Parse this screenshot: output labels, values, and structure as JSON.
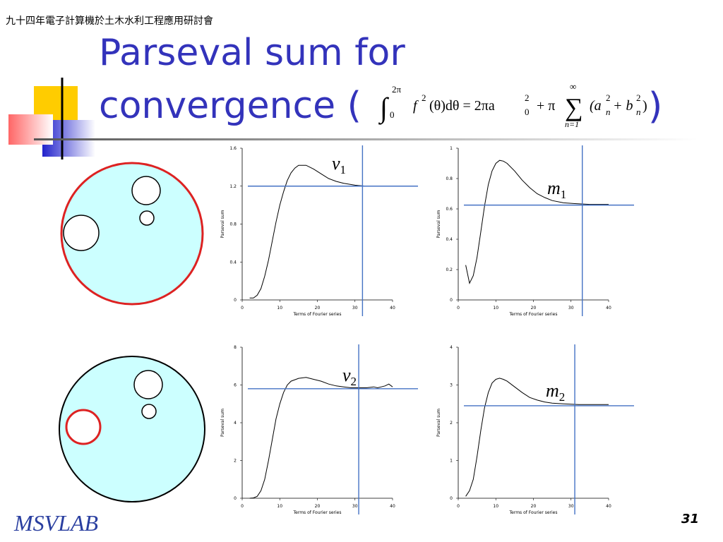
{
  "header": "九十四年電子計算機於土木水利工程應用研討會",
  "title_line1": "Parseval sum for",
  "title_line2": "convergence (",
  "title_close": ")",
  "formula": {
    "integral": "∫",
    "upper": "2π",
    "lower": "0",
    "f": "f",
    "f_sup": "2",
    "body": "(θ)dθ = 2πa",
    "a0_sup": "2",
    "a0_sub": "0",
    "plus": "+ π",
    "sum": "∑",
    "sum_upper": "∞",
    "sum_lower": "n=1",
    "term_a": "(a",
    "a_sup": "2",
    "a_sub": "n",
    "term_b": "+ b",
    "b_sup": "2",
    "b_sub": "n",
    "close": ")"
  },
  "footer_logo": "MSVLAB",
  "page_number": "31",
  "chart_data": [
    {
      "type": "line",
      "xlabel": "Terms of Fourier series",
      "ylabel": "Parseval sum",
      "annotation": {
        "symbol": "v",
        "subscript": "1"
      },
      "xlim": [
        0,
        40
      ],
      "xticks": [
        0,
        10,
        20,
        30,
        40
      ],
      "ylim": [
        0,
        1.6
      ],
      "yticks": [
        0,
        0.4,
        0.8,
        1.2,
        1.6
      ],
      "x": [
        2,
        3,
        4,
        5,
        6,
        7,
        8,
        9,
        10,
        11,
        12,
        13,
        14,
        15,
        17,
        19,
        21,
        23,
        25,
        27,
        30,
        33,
        36,
        40
      ],
      "values": [
        0.02,
        0.02,
        0.05,
        0.12,
        0.25,
        0.42,
        0.62,
        0.82,
        1.0,
        1.14,
        1.26,
        1.34,
        1.39,
        1.42,
        1.42,
        1.38,
        1.33,
        1.28,
        1.25,
        1.23,
        1.21,
        1.2,
        1.2,
        1.2
      ],
      "color": "#000000",
      "hline": 1.2,
      "vline": 32,
      "refcolor": "#4472c4"
    },
    {
      "type": "line",
      "xlabel": "Terms of Fourier series",
      "ylabel": "Parseval sum",
      "annotation": {
        "symbol": "m",
        "subscript": "1"
      },
      "xlim": [
        0,
        40
      ],
      "xticks": [
        0,
        10,
        20,
        30,
        40
      ],
      "ylim": [
        0,
        1
      ],
      "yticks": [
        0,
        0.2,
        0.4,
        0.6,
        0.8,
        1
      ],
      "x": [
        2,
        3,
        4,
        5,
        6,
        7,
        8,
        9,
        10,
        11,
        12,
        13,
        15,
        17,
        19,
        21,
        23,
        25,
        28,
        31,
        35,
        40
      ],
      "values": [
        0.23,
        0.11,
        0.16,
        0.28,
        0.45,
        0.62,
        0.76,
        0.85,
        0.9,
        0.92,
        0.915,
        0.9,
        0.85,
        0.79,
        0.74,
        0.7,
        0.675,
        0.655,
        0.64,
        0.635,
        0.63,
        0.63
      ],
      "color": "#000000",
      "hline": 0.625,
      "vline": 33,
      "refcolor": "#4472c4"
    },
    {
      "type": "line",
      "xlabel": "Terms of Fourier series",
      "ylabel": "Parseval sum",
      "annotation": {
        "symbol": "v",
        "subscript": "2"
      },
      "xlim": [
        0,
        40
      ],
      "xticks": [
        0,
        10,
        20,
        30,
        40
      ],
      "ylim": [
        0,
        8
      ],
      "yticks": [
        0,
        2,
        4,
        6,
        8
      ],
      "x": [
        2,
        3,
        4,
        5,
        6,
        7,
        8,
        9,
        10,
        11,
        12,
        13,
        15,
        17,
        19,
        21,
        23,
        25,
        27,
        29,
        31,
        33,
        35,
        36,
        37,
        38,
        39,
        40
      ],
      "values": [
        0,
        0.02,
        0.1,
        0.4,
        1.0,
        2.0,
        3.1,
        4.2,
        5.0,
        5.6,
        6.0,
        6.2,
        6.35,
        6.4,
        6.3,
        6.2,
        6.05,
        5.95,
        5.9,
        5.85,
        5.85,
        5.85,
        5.9,
        5.85,
        5.9,
        5.95,
        6.05,
        5.9
      ],
      "color": "#000000",
      "hline": 5.8,
      "vline": 31,
      "refcolor": "#4472c4"
    },
    {
      "type": "line",
      "xlabel": "Terms of Fourier series",
      "ylabel": "Parseval sum",
      "annotation": {
        "symbol": "m",
        "subscript": "2"
      },
      "xlim": [
        0,
        40
      ],
      "xticks": [
        0,
        10,
        20,
        30,
        40
      ],
      "ylim": [
        0,
        4
      ],
      "yticks": [
        0,
        1,
        2,
        3,
        4
      ],
      "x": [
        2,
        3,
        4,
        5,
        6,
        7,
        8,
        9,
        10,
        11,
        12,
        13,
        15,
        17,
        19,
        21,
        23,
        25,
        28,
        32,
        36,
        40
      ],
      "values": [
        0.05,
        0.2,
        0.5,
        1.1,
        1.8,
        2.4,
        2.8,
        3.05,
        3.15,
        3.18,
        3.15,
        3.1,
        2.95,
        2.8,
        2.67,
        2.6,
        2.55,
        2.52,
        2.5,
        2.48,
        2.48,
        2.48
      ],
      "color": "#000000",
      "hline": 2.45,
      "vline": 31,
      "refcolor": "#4472c4"
    }
  ]
}
